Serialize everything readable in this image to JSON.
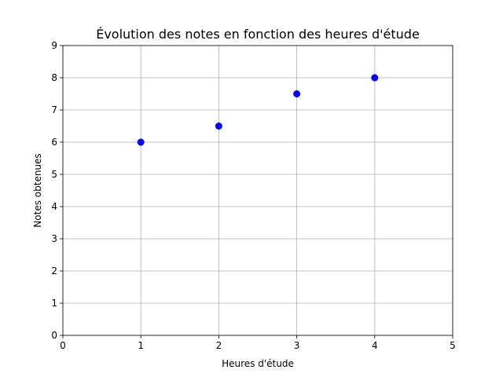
{
  "chart_data": {
    "type": "scatter",
    "title": "Évolution des notes en fonction des heures d'étude",
    "xlabel": "Heures d'étude",
    "ylabel": "Notes obtenues",
    "xlim": [
      0,
      5
    ],
    "ylim": [
      0,
      9
    ],
    "xticks": [
      "0",
      "1",
      "2",
      "3",
      "4",
      "5"
    ],
    "yticks": [
      "0",
      "1",
      "2",
      "3",
      "4",
      "5",
      "6",
      "7",
      "8",
      "9"
    ],
    "grid": true,
    "series": [
      {
        "color": "#0000ff",
        "x": [
          1,
          2,
          3,
          4
        ],
        "y": [
          6,
          6.5,
          7.5,
          8
        ]
      }
    ]
  }
}
